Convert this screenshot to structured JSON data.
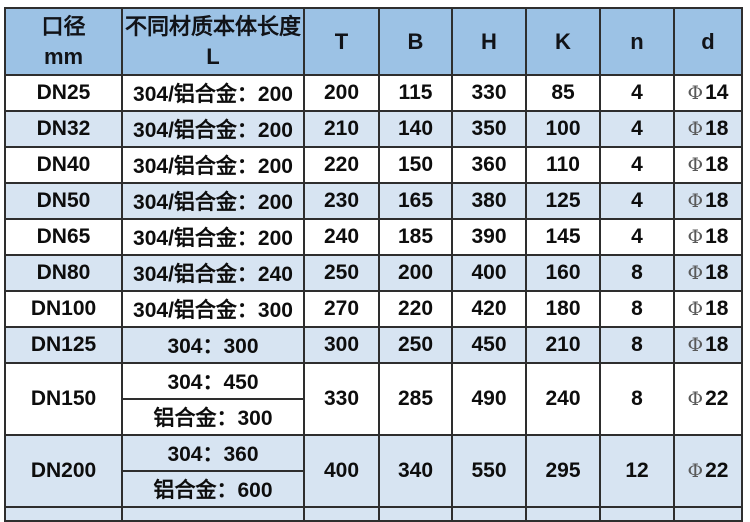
{
  "table": {
    "title_semantic": "pipe-dimension-spec-table",
    "colors": {
      "header_bg": "#9cc2e5",
      "alt_row_bg": "#d7e4f2",
      "row_bg": "#ffffff",
      "border": "#2e2e2e",
      "text": "#0d0d0d",
      "phi_symbol": "#595959"
    },
    "header": {
      "dn_line1": "口径",
      "dn_line2": "mm",
      "l_line1": "不同材质本体长度",
      "l_line2": "L",
      "cols": [
        "T",
        "B",
        "H",
        "K",
        "n",
        "d"
      ]
    },
    "rows": [
      {
        "dn": "DN25",
        "l": "304/铝合金：200",
        "t": "200",
        "b": "115",
        "h": "330",
        "k": "85",
        "n": "4",
        "phi": "Φ",
        "d": "14"
      },
      {
        "dn": "DN32",
        "l": "304/铝合金：200",
        "t": "210",
        "b": "140",
        "h": "350",
        "k": "100",
        "n": "4",
        "phi": "Φ",
        "d": "18"
      },
      {
        "dn": "DN40",
        "l": "304/铝合金：200",
        "t": "220",
        "b": "150",
        "h": "360",
        "k": "110",
        "n": "4",
        "phi": "Φ",
        "d": "18"
      },
      {
        "dn": "DN50",
        "l": "304/铝合金：200",
        "t": "230",
        "b": "165",
        "h": "380",
        "k": "125",
        "n": "4",
        "phi": "Φ",
        "d": "18"
      },
      {
        "dn": "DN65",
        "l": "304/铝合金：200",
        "t": "240",
        "b": "185",
        "h": "390",
        "k": "145",
        "n": "4",
        "phi": "Φ",
        "d": "18"
      },
      {
        "dn": "DN80",
        "l": "304/铝合金：240",
        "t": "250",
        "b": "200",
        "h": "400",
        "k": "160",
        "n": "8",
        "phi": "Φ",
        "d": "18"
      },
      {
        "dn": "DN100",
        "l": "304/铝合金：300",
        "t": "270",
        "b": "220",
        "h": "420",
        "k": "180",
        "n": "8",
        "phi": "Φ",
        "d": "18"
      },
      {
        "dn": "DN125",
        "l": "304：300",
        "t": "300",
        "b": "250",
        "h": "450",
        "k": "210",
        "n": "8",
        "phi": "Φ",
        "d": "18"
      },
      {
        "dn": "DN150",
        "l1": "304：450",
        "l2": "铝合金：300",
        "t": "330",
        "b": "285",
        "h": "490",
        "k": "240",
        "n": "8",
        "phi": "Φ",
        "d": "22"
      },
      {
        "dn": "DN200",
        "l1": "304：360",
        "l2": "铝合金：600",
        "t": "400",
        "b": "340",
        "h": "550",
        "k": "295",
        "n": "12",
        "phi": "Φ",
        "d": "22"
      }
    ]
  }
}
